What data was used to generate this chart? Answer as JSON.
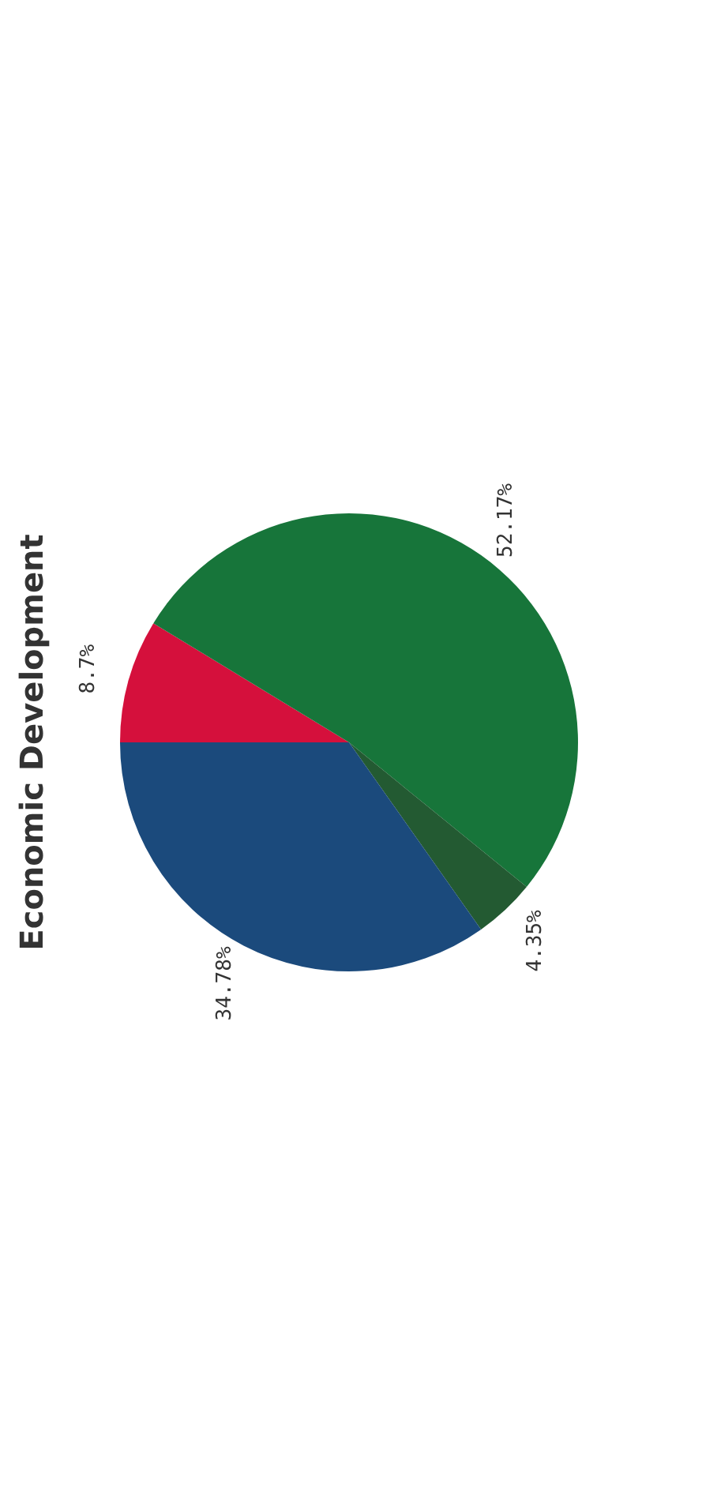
{
  "chart_data": {
    "type": "pie",
    "title": "Economic Development",
    "categories": [
      null,
      null,
      null,
      null
    ],
    "values": [
      8.7,
      52.17,
      4.35,
      34.78
    ],
    "colors": [
      "#d5103c",
      "#17753a",
      "#235a32",
      "#1b4a7c"
    ],
    "value_labels": [
      "8.7%",
      "52.17%",
      "4.35%",
      "34.78%"
    ]
  }
}
